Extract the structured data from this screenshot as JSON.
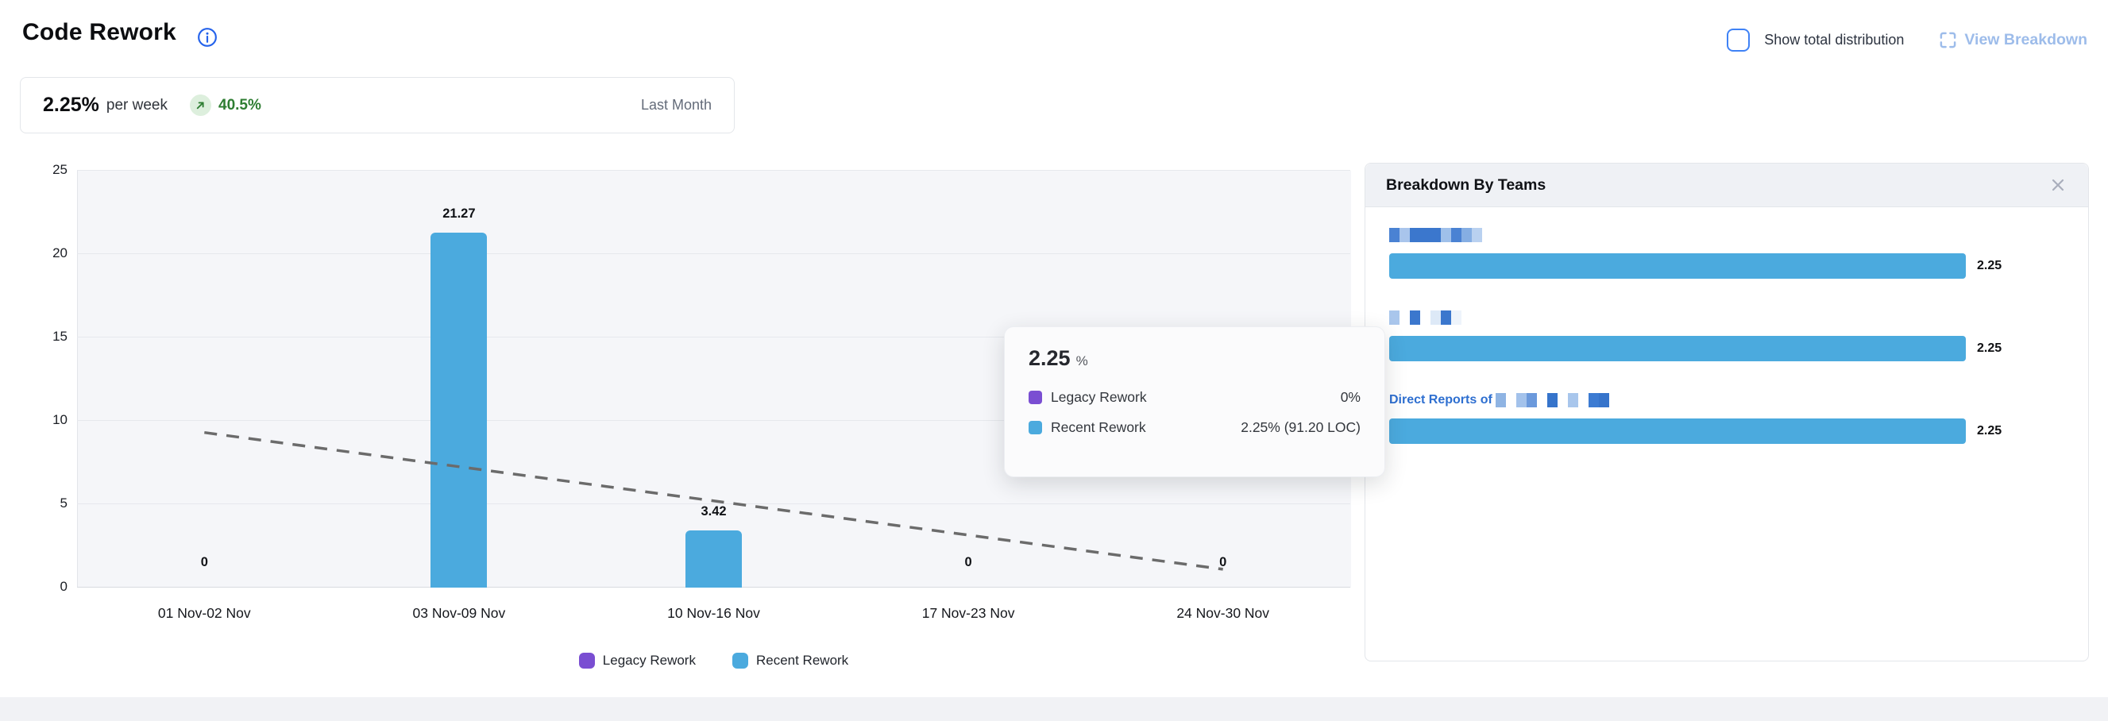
{
  "header": {
    "title": "Code Rework",
    "info_icon": "info-icon",
    "show_total_distribution_label": "Show total distribution",
    "view_breakdown_icon": "expand-icon",
    "view_breakdown_label": "View Breakdown"
  },
  "summary": {
    "value": "2.25%",
    "unit": "per week",
    "trend_icon": "arrow-up-right-icon",
    "change": "40.5%",
    "period": "Last Month"
  },
  "chart_data": {
    "type": "bar",
    "title": "Code Rework weekly percentage",
    "categories": [
      "01 Nov-02 Nov",
      "03 Nov-09 Nov",
      "10 Nov-16 Nov",
      "17 Nov-23 Nov",
      "24 Nov-30 Nov"
    ],
    "series": [
      {
        "name": "Legacy Rework",
        "color": "#7a4ed2",
        "values": [
          0,
          0,
          0,
          0,
          0
        ]
      },
      {
        "name": "Recent Rework",
        "color": "#4baade",
        "values": [
          0,
          21.27,
          3.42,
          0,
          0
        ]
      }
    ],
    "bar_labels": [
      "0",
      "21.27",
      "3.42",
      "0",
      "0"
    ],
    "trend_line": {
      "style": "dashed",
      "color": "#6b6b6b",
      "start_value": 9.3,
      "end_value": 1.1
    },
    "xlabel": "",
    "ylabel": "",
    "ylim": [
      0,
      25
    ],
    "yticks": [
      0,
      5,
      10,
      15,
      20,
      25
    ],
    "grid": true,
    "legend_position": "bottom"
  },
  "tooltip": {
    "value": "2.25",
    "unit": "%",
    "rows": [
      {
        "label": "Legacy Rework",
        "value": "0%",
        "color": "#7a4ed2"
      },
      {
        "label": "Recent Rework",
        "value": "2.25% (91.20 LOC)",
        "color": "#4baade"
      }
    ]
  },
  "breakdown": {
    "title": "Breakdown By Teams",
    "close_icon": "close-icon",
    "bar_color": "#4baade",
    "rows": [
      {
        "label_prefix": "",
        "label_redacted": true,
        "mosaic": [
          "#4a82d3",
          "#a9c5ec",
          "#3b77cd",
          "#3b77cd",
          "#3b77cd",
          "#9fc0ea",
          "#4a82d3",
          "#85aee3",
          "#b9d1f0"
        ],
        "value": "2.25"
      },
      {
        "label_prefix": "",
        "label_redacted": true,
        "mosaic": [
          "#a9c6ec",
          "none",
          "#3b77cd",
          "none",
          "#dde9f7",
          "#3b77cd",
          "#eef4fb"
        ],
        "value": "2.25"
      },
      {
        "label_prefix": "Direct Reports of",
        "label_redacted": true,
        "mosaic": [
          "#8fb4e3",
          "none",
          "#a3c2eb",
          "#6b99dc",
          "none",
          "#3674cb",
          "none",
          "#a8c6ec",
          "none",
          "#3c7bd2",
          "#3674cb"
        ],
        "value": "2.25"
      }
    ]
  },
  "colors": {
    "recent_rework_blue": "#4baade",
    "legacy_rework_purple": "#7a4ed2",
    "trend_gray": "#6b6b6b",
    "positive_green": "#2e7d32",
    "positive_green_bg": "#ddefdd",
    "link_blue": "#2e6fd0",
    "disabled_link_blue": "#9dbcea",
    "panel_header_bg": "#eff1f5",
    "plot_bg": "#f5f6f9"
  }
}
